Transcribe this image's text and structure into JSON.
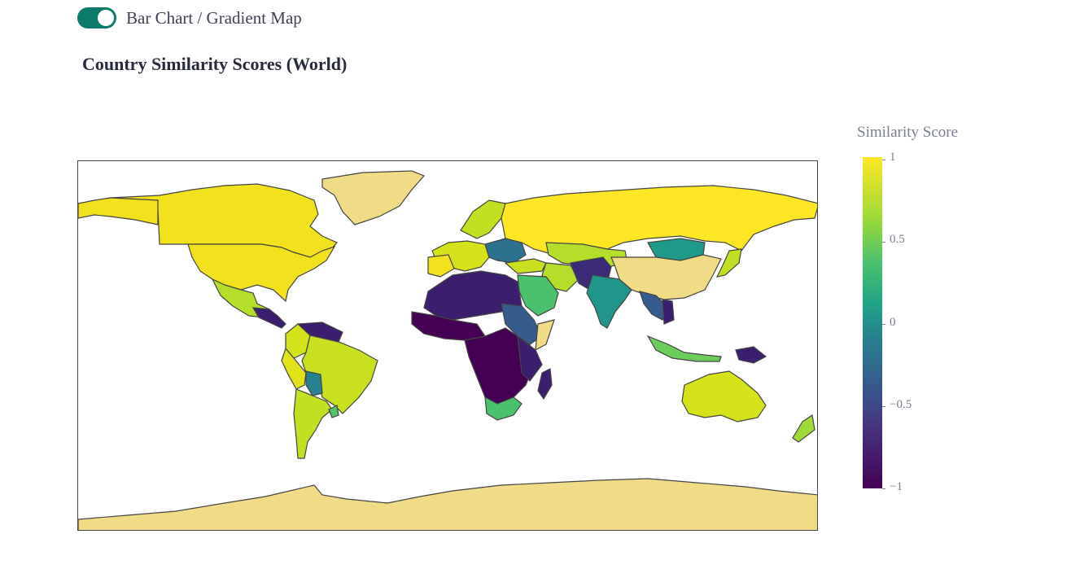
{
  "toggle": {
    "label": "Bar Chart / Gradient Map",
    "on": true
  },
  "title": "Country Similarity Scores (World)",
  "legend": {
    "title": "Similarity Score",
    "ticks": [
      "1",
      "0.5",
      "0",
      "−0.5",
      "−1"
    ],
    "range": [
      -1,
      1
    ],
    "colorscale": "viridis"
  },
  "colors": {
    "toggle_on": "#0b7a68",
    "no_data": "#f0dc87",
    "max": "#fde725",
    "min": "#440154"
  }
}
